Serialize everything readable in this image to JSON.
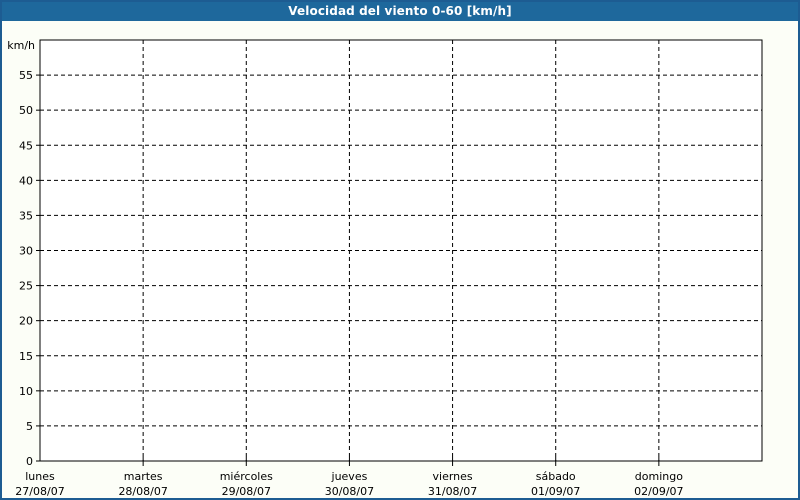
{
  "title_bar": {
    "title": "Velocidad del viento 0-60 [km/h]"
  },
  "colors": {
    "title_bar_bg": "#1E689C",
    "title_text": "#FFFFFF",
    "window_border": "#1D5C92",
    "page_bg": "#FCFEF7",
    "plot_bg": "#FFFFFF",
    "grid": "#000000",
    "axis": "#000000",
    "label_text": "#000000"
  },
  "chart_data": {
    "type": "line",
    "title": "Velocidad del viento 0-60 [km/h]",
    "ylabel": "km/h",
    "ylim": [
      0,
      60
    ],
    "ytick_interval": 5,
    "ytick_labels": [
      "0",
      "5",
      "10",
      "15",
      "20",
      "25",
      "30",
      "35",
      "40",
      "45",
      "50",
      "55"
    ],
    "grid": true,
    "grid_style": "dashed",
    "legend": "none",
    "x_axis": {
      "span_days": 7,
      "categories": [
        {
          "day": "lunes",
          "date": "27/08/07"
        },
        {
          "day": "martes",
          "date": "28/08/07"
        },
        {
          "day": "miércoles",
          "date": "29/08/07"
        },
        {
          "day": "jueves",
          "date": "30/08/07"
        },
        {
          "day": "viernes",
          "date": "31/08/07"
        },
        {
          "day": "sábado",
          "date": "01/09/07"
        },
        {
          "day": "domingo",
          "date": "02/09/07"
        }
      ]
    },
    "series": []
  }
}
